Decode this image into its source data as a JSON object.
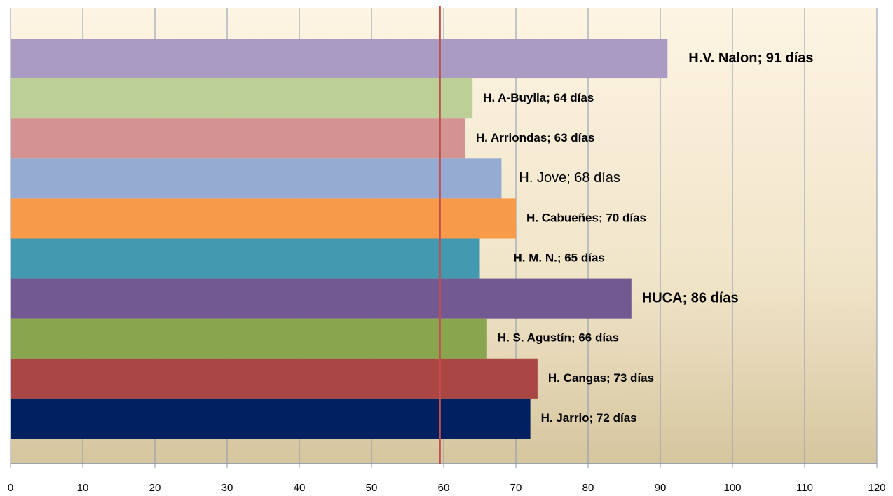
{
  "chart_data": {
    "type": "barh",
    "values": [
      91,
      64,
      63,
      68,
      70,
      65,
      86,
      66,
      73,
      72
    ],
    "value_labels": [
      "H.V. Nalon; 91 días",
      "H. A-Buylla; 64 días",
      "H. Arriondas; 63 días",
      "H. Jove; 68 días",
      "H. Cabueñes; 70 días",
      "H. M. N.; 65 días",
      "HUCA; 86 días",
      "H. S. Agustín; 66 días",
      "H. Cangas; 73 días",
      "H. Jarrio; 72 días"
    ],
    "colors": [
      "#a99bc1",
      "#bbcf97",
      "#d49393",
      "#95abd1",
      "#f79a4a",
      "#4299b0",
      "#725991",
      "#89a54e",
      "#aa4643",
      "#002060"
    ],
    "xlim": [
      0,
      120
    ],
    "xticks": [
      0,
      10,
      20,
      30,
      40,
      50,
      60,
      70,
      80,
      90,
      100,
      110,
      120
    ],
    "grid": true,
    "reference_line": {
      "value": 59.5,
      "color": "#c0504d"
    }
  }
}
